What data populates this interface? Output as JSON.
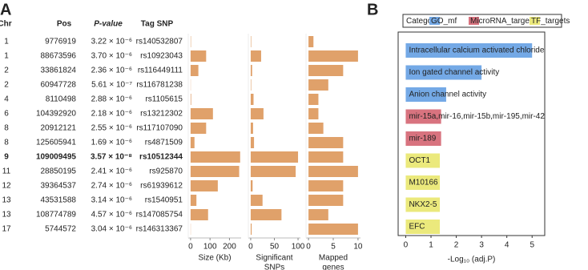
{
  "panel_labels": [
    "A",
    "B"
  ],
  "table": {
    "headers": [
      "Chr",
      "Pos",
      "P-value",
      "Tag SNP"
    ],
    "bold_row": 8,
    "rows": [
      [
        "1",
        "9776919",
        "3.22 × 10⁻⁶",
        "rs140532807"
      ],
      [
        "1",
        "88673596",
        "3.70 × 10⁻⁶",
        "rs10923043"
      ],
      [
        "2",
        "33861824",
        "2.36 × 10⁻⁶",
        "rs116449111"
      ],
      [
        "2",
        "60947728",
        "5.61 × 10⁻⁷",
        "rs116781238"
      ],
      [
        "4",
        "8110498",
        "2.88 × 10⁻⁶",
        "rs1105615"
      ],
      [
        "6",
        "104392920",
        "2.18 × 10⁻⁶",
        "rs13212302"
      ],
      [
        "8",
        "20912121",
        "2.55 × 10⁻⁶",
        "rs117107090"
      ],
      [
        "8",
        "125605941",
        "1.69 × 10⁻⁶",
        "rs4871509"
      ],
      [
        "9",
        "109009495",
        "3.57 × 10⁻⁸",
        "rs10512344"
      ],
      [
        "11",
        "28850195",
        "2.41 × 10⁻⁶",
        "rs925870"
      ],
      [
        "12",
        "39364537",
        "2.74 × 10⁻⁶",
        "rs61939612"
      ],
      [
        "13",
        "43531588",
        "3.14 × 10⁻⁶",
        "rs1540951"
      ],
      [
        "13",
        "108774789",
        "4.57 × 10⁻⁶",
        "rs147085754"
      ],
      [
        "17",
        "5744572",
        "3.04 × 10⁻⁶",
        "rs146313367"
      ]
    ]
  },
  "chart_data": [
    {
      "type": "hbar",
      "xlabel": [
        "Size (Kb)"
      ],
      "color": "#e0a16a",
      "values": [
        2,
        80,
        40,
        1,
        3,
        115,
        80,
        20,
        255,
        250,
        140,
        30,
        90,
        1
      ],
      "xlim": [
        -12,
        260
      ],
      "xticks": [
        0,
        100,
        200
      ]
    },
    {
      "type": "hbar",
      "xlabel": [
        "Significant",
        "SNPs"
      ],
      "color": "#e0a16a",
      "values": [
        1,
        22,
        3,
        1,
        6,
        27,
        5,
        7,
        100,
        95,
        4,
        25,
        65,
        2
      ],
      "xlim": [
        -5,
        105
      ],
      "xticks": [
        0,
        50,
        100
      ]
    },
    {
      "type": "hbar",
      "xlabel": [
        "Mapped",
        "genes"
      ],
      "color": "#e0a16a",
      "values": [
        1,
        10,
        7,
        4,
        2,
        2,
        3,
        7,
        7,
        10,
        7,
        7,
        4,
        10
      ],
      "xlim": [
        -0.5,
        10.5
      ],
      "xticks": [
        0,
        5,
        10
      ]
    },
    {
      "type": "catbar",
      "xlabel": "-Log₁₀ (adj.P)",
      "legend_title": "Category",
      "categories": [
        "Intracellular calcium activated chloride channel activity",
        "Ion gated channel activity",
        "Anion channel activity",
        "mir-15a,mir-16,mir-15b,mir-195,mir-424,mir-497",
        "mir-189",
        "OCT1",
        "M10166",
        "NKX2-5",
        "EFC"
      ],
      "series": [
        {
          "name": "GO_mf",
          "color": "#74a9e6",
          "values": [
            5.0,
            3.0,
            1.6,
            null,
            null,
            null,
            null,
            null,
            null
          ]
        },
        {
          "name": "MicroRNA_targets",
          "color": "#d8737f",
          "values": [
            null,
            null,
            null,
            1.4,
            1.4,
            null,
            null,
            null,
            null
          ]
        },
        {
          "name": "TF_targets",
          "color": "#ebe97c",
          "values": [
            null,
            null,
            null,
            null,
            null,
            1.35,
            1.35,
            1.35,
            1.35
          ]
        }
      ],
      "xlim": [
        -0.3,
        5.5
      ],
      "xticks": [
        0,
        1,
        2,
        3,
        4,
        5
      ]
    }
  ]
}
